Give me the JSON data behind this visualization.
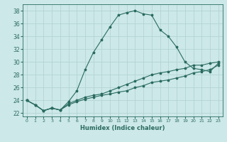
{
  "xlabel": "Humidex (Indice chaleur)",
  "ylabel": "",
  "background_color": "#cce8e8",
  "grid_color": "#b0d0d0",
  "line_color": "#2a6b60",
  "xlim": [
    -0.5,
    23.5
  ],
  "ylim": [
    21.5,
    39.0
  ],
  "xticks": [
    0,
    1,
    2,
    3,
    4,
    5,
    6,
    7,
    8,
    9,
    10,
    11,
    12,
    13,
    14,
    15,
    16,
    17,
    18,
    19,
    20,
    21,
    22,
    23
  ],
  "yticks": [
    22,
    24,
    26,
    28,
    30,
    32,
    34,
    36,
    38
  ],
  "series": [
    {
      "x": [
        0,
        1,
        2,
        3,
        4,
        5,
        6,
        7,
        8,
        9,
        10,
        11,
        12,
        13,
        14,
        15,
        16,
        17,
        18,
        19,
        20,
        21,
        22,
        23
      ],
      "y": [
        24.0,
        23.3,
        22.4,
        22.8,
        22.5,
        23.8,
        25.5,
        28.8,
        31.5,
        33.5,
        35.5,
        37.3,
        37.7,
        38.0,
        37.5,
        37.3,
        35.0,
        34.0,
        32.3,
        30.0,
        29.0,
        28.8,
        28.5,
        29.8
      ]
    },
    {
      "x": [
        0,
        1,
        2,
        3,
        4,
        5,
        6,
        7,
        8,
        9,
        10,
        11,
        12,
        13,
        14,
        15,
        16,
        17,
        18,
        19,
        20,
        21,
        22,
        23
      ],
      "y": [
        24.0,
        23.3,
        22.4,
        22.8,
        22.5,
        23.5,
        24.0,
        24.5,
        24.8,
        25.0,
        25.5,
        26.0,
        26.5,
        27.0,
        27.5,
        28.0,
        28.3,
        28.5,
        28.8,
        29.0,
        29.5,
        29.5,
        29.8,
        30.0
      ]
    },
    {
      "x": [
        0,
        1,
        2,
        3,
        4,
        5,
        6,
        7,
        8,
        9,
        10,
        11,
        12,
        13,
        14,
        15,
        16,
        17,
        18,
        19,
        20,
        21,
        22,
        23
      ],
      "y": [
        24.0,
        23.3,
        22.4,
        22.8,
        22.5,
        23.3,
        23.8,
        24.2,
        24.5,
        24.8,
        25.0,
        25.3,
        25.5,
        26.0,
        26.3,
        26.8,
        27.0,
        27.2,
        27.5,
        27.8,
        28.3,
        28.5,
        28.8,
        29.5
      ]
    }
  ],
  "xlabel_fontsize": 6,
  "xtick_fontsize": 4.5,
  "ytick_fontsize": 5.5,
  "marker_size": 2.5,
  "linewidth": 0.8
}
